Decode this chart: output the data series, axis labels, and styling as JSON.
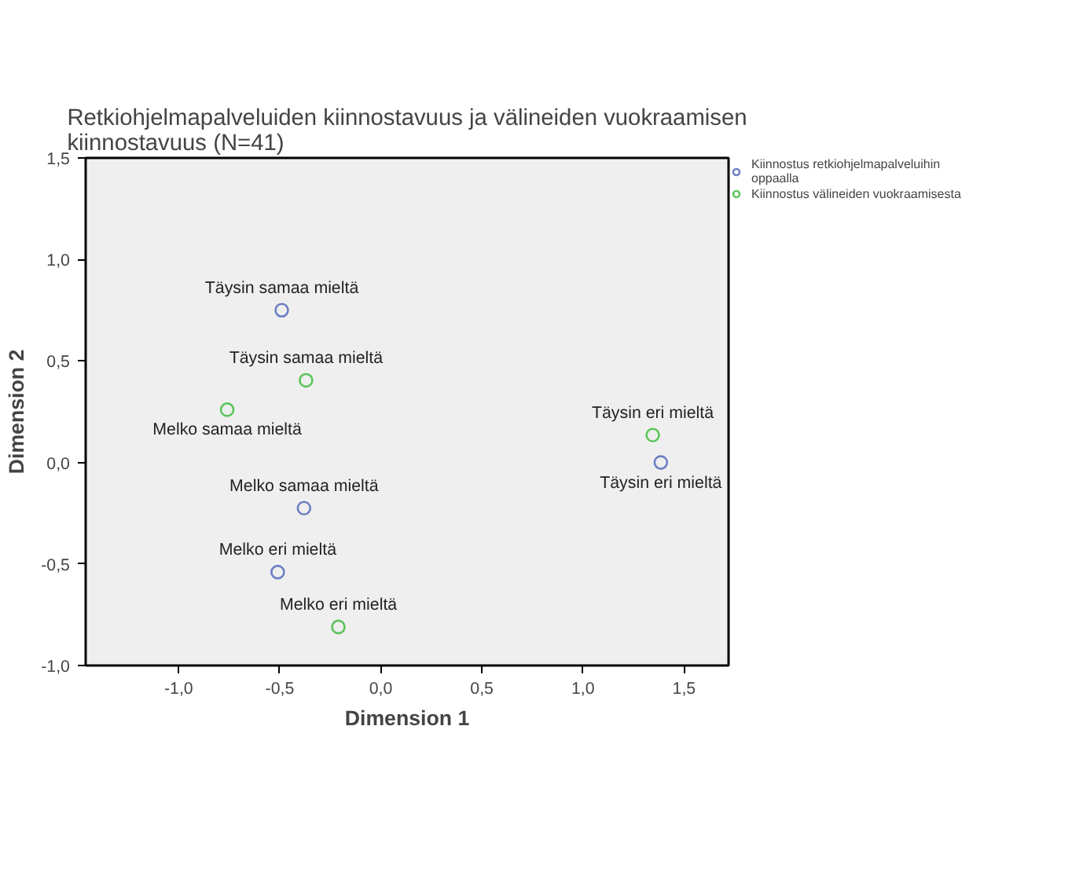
{
  "chart_data": {
    "type": "scatter",
    "title": "Retkiohjelmapalveluiden kiinnostavuus ja välineiden vuokraamisen kiinnostavuus (N=41)",
    "xlabel": "Dimension 1",
    "ylabel": "Dimension 2",
    "xlim": [
      -1.46,
      1.72
    ],
    "ylim": [
      -1.0,
      1.5
    ],
    "xticks": [
      {
        "value": -1.0,
        "label": "-1,0"
      },
      {
        "value": -0.5,
        "label": "-0,5"
      },
      {
        "value": 0.0,
        "label": "0,0"
      },
      {
        "value": 0.5,
        "label": "0,5"
      },
      {
        "value": 1.0,
        "label": "1,0"
      },
      {
        "value": 1.5,
        "label": "1,5"
      }
    ],
    "yticks": [
      {
        "value": -1.0,
        "label": "-1,0"
      },
      {
        "value": -0.5,
        "label": "-0,5"
      },
      {
        "value": 0.0,
        "label": "0,0"
      },
      {
        "value": 0.5,
        "label": "0,5"
      },
      {
        "value": 1.0,
        "label": "1,0"
      },
      {
        "value": 1.5,
        "label": "1,5"
      }
    ],
    "grid": false,
    "legend": "top right",
    "marker": "circle",
    "series": [
      {
        "name": "Kiinnostus retkiohjelmapalveluihin oppaalla",
        "color": "#6c7fc4",
        "x": [
          -0.49,
          -0.38,
          -0.51,
          1.385
        ],
        "values": [
          0.75,
          -0.225,
          -0.54,
          0.0
        ]
      },
      {
        "name": "Kiinnostus välineiden vuokraamisesta",
        "color": "#5cc55c",
        "x": [
          -0.37,
          -0.76,
          1.345,
          -0.21
        ],
        "values": [
          0.405,
          0.26,
          0.135,
          -0.81
        ]
      }
    ],
    "annotations": [
      {
        "text": "Täysin samaa mieltä",
        "x": -0.49,
        "y": 0.75
      },
      {
        "text": "Melko samaa mieltä",
        "x": -0.38,
        "y": -0.225
      },
      {
        "text": "Melko eri mieltä",
        "x": -0.51,
        "y": -0.54
      },
      {
        "text": "Täysin eri mieltä",
        "x": 1.385,
        "y": 0.0
      },
      {
        "text": "Täysin samaa mieltä",
        "x": -0.37,
        "y": 0.405
      },
      {
        "text": "Melko samaa mieltä",
        "x": -0.76,
        "y": 0.26
      },
      {
        "text": "Täysin eri mieltä",
        "x": 1.345,
        "y": 0.135
      },
      {
        "text": "Melko eri mieltä",
        "x": -0.21,
        "y": -0.81
      }
    ]
  }
}
